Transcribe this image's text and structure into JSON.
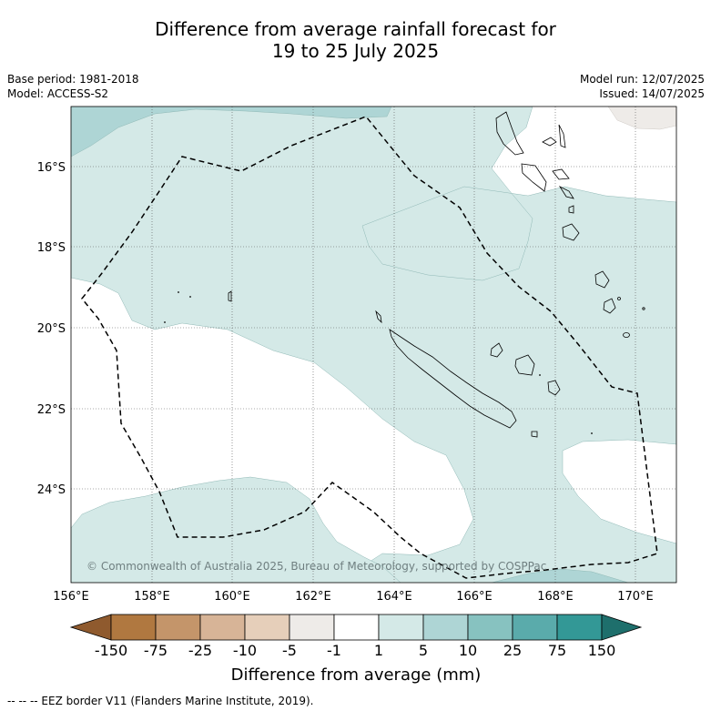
{
  "title": {
    "line1": "Difference from average rainfall forecast for",
    "line2": "19 to 25 July 2025"
  },
  "meta": {
    "base_period": "Base period: 1981-2018",
    "model": "Model: ACCESS-S2",
    "model_run": "Model run: 12/07/2025",
    "issued": "Issued: 14/07/2025"
  },
  "map": {
    "lon_labels": [
      "156°E",
      "158°E",
      "160°E",
      "162°E",
      "164°E",
      "166°E",
      "168°E",
      "170°E"
    ],
    "lat_labels": [
      "16°S",
      "18°S",
      "20°S",
      "22°S",
      "24°S"
    ],
    "copyright": "© Commonwealth of Australia 2025, Bureau of Meteorology, supported by COSPPac",
    "colors": {
      "light_teal": "#d4e9e7",
      "teal_5_10": "#aed5d5",
      "neutral_-5_-1": "#eeebe8"
    }
  },
  "colorbar": {
    "title": "Difference from average (mm)",
    "tick_labels": [
      "-150",
      "-75",
      "-25",
      "-10",
      "-5",
      "-1",
      "1",
      "5",
      "10",
      "25",
      "75",
      "150"
    ],
    "colors": [
      "#8f5a2e",
      "#b07840",
      "#c4956a",
      "#d7b497",
      "#e6cfba",
      "#eeebe8",
      "#ffffff",
      "#d4e9e7",
      "#aed5d5",
      "#87c2c0",
      "#5aabab",
      "#339896",
      "#1e6f6c"
    ]
  },
  "footer": "-- -- -- EEZ border V11 (Flanders Marine Institute, 2019)."
}
